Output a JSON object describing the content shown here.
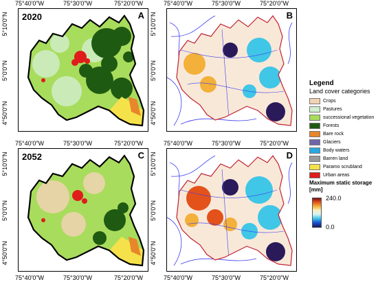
{
  "panels": [
    {
      "id": "A",
      "year": "2020",
      "type": "landcover-2020"
    },
    {
      "id": "B",
      "year": "",
      "type": "storage"
    },
    {
      "id": "C",
      "year": "2052",
      "type": "landcover-2052"
    },
    {
      "id": "D",
      "year": "",
      "type": "storage"
    }
  ],
  "axes": {
    "x_ticks": [
      "75°40'0\"W",
      "75°30'0\"W",
      "75°20'0\"W"
    ],
    "y_ticks": [
      "5°10'0\"N",
      "5°0'0\"N",
      "4°50'0\"N"
    ]
  },
  "legend": {
    "title": "Legend",
    "subtitle": "Land cover categories",
    "items": [
      {
        "label": "Crops",
        "color": "#f1d3b3"
      },
      {
        "label": "Pastures",
        "color": "#d2efcf"
      },
      {
        "label": "successional vegetation",
        "color": "#a8dc5c"
      },
      {
        "label": "Forests",
        "color": "#1f5a12"
      },
      {
        "label": "Bare rock",
        "color": "#e8862a"
      },
      {
        "label": "Glaciers",
        "color": "#6f65a8"
      },
      {
        "label": "Body waters",
        "color": "#2aa8e0"
      },
      {
        "label": "Barren land",
        "color": "#9a9a9a"
      },
      {
        "label": "Paramo scrubland",
        "color": "#f5e24a"
      },
      {
        "label": "Urban areas",
        "color": "#e01c1c"
      }
    ]
  },
  "storage_legend": {
    "title": "Maximum static storage",
    "unit": "[mm]",
    "max": "240.0",
    "min": "0.0"
  }
}
